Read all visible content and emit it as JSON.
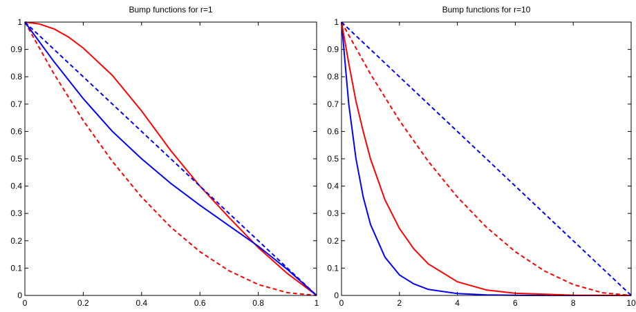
{
  "chart_data": [
    {
      "type": "line",
      "title": "Bump functions for r=1",
      "xlim": [
        0,
        1
      ],
      "ylim": [
        0,
        1
      ],
      "xticks": [
        "0",
        "0.2",
        "0.4",
        "0.6",
        "0.8",
        "1"
      ],
      "yticks": [
        "0",
        "0.1",
        "0.2",
        "0.3",
        "0.4",
        "0.5",
        "0.6",
        "0.7",
        "0.8",
        "0.9",
        "1"
      ],
      "grid": false,
      "series": [
        {
          "color": "#ff0000",
          "dash": false,
          "x": [
            0,
            0.05,
            0.1,
            0.15,
            0.2,
            0.3,
            0.4,
            0.5,
            0.6,
            0.7,
            0.8,
            0.9,
            1.0
          ],
          "y": [
            1.0,
            0.993,
            0.975,
            0.945,
            0.905,
            0.805,
            0.675,
            0.53,
            0.4,
            0.285,
            0.175,
            0.08,
            0.0
          ]
        },
        {
          "color": "#ff0000",
          "dash": true,
          "x": [
            0,
            0.1,
            0.2,
            0.3,
            0.4,
            0.5,
            0.6,
            0.7,
            0.8,
            0.9,
            1.0
          ],
          "y": [
            1.0,
            0.81,
            0.64,
            0.49,
            0.36,
            0.25,
            0.16,
            0.09,
            0.04,
            0.01,
            0.0
          ]
        },
        {
          "color": "#0000ff",
          "dash": false,
          "x": [
            0,
            0.1,
            0.2,
            0.3,
            0.4,
            0.5,
            0.6,
            0.7,
            0.8,
            0.9,
            1.0
          ],
          "y": [
            1.0,
            0.855,
            0.72,
            0.6,
            0.5,
            0.41,
            0.33,
            0.255,
            0.18,
            0.095,
            0.0
          ]
        },
        {
          "color": "#0000ff",
          "dash": true,
          "x": [
            0,
            1.0
          ],
          "y": [
            1.0,
            0.0
          ]
        }
      ]
    },
    {
      "type": "line",
      "title": "Bump functions for r=10",
      "xlim": [
        0,
        10
      ],
      "ylim": [
        0,
        1
      ],
      "xticks": [
        "0",
        "2",
        "4",
        "6",
        "8",
        "10"
      ],
      "yticks": [
        "0",
        "0.1",
        "0.2",
        "0.3",
        "0.4",
        "0.5",
        "0.6",
        "0.7",
        "0.8",
        "0.9",
        "1"
      ],
      "grid": false,
      "series": [
        {
          "color": "#0000ff",
          "dash": false,
          "x": [
            0,
            0.25,
            0.5,
            0.75,
            1,
            1.5,
            2,
            2.5,
            3,
            4,
            5,
            6,
            8,
            10
          ],
          "y": [
            1.0,
            0.7,
            0.5,
            0.36,
            0.26,
            0.14,
            0.075,
            0.042,
            0.022,
            0.007,
            0.002,
            0.0005,
            0.0,
            0.0
          ]
        },
        {
          "color": "#ff0000",
          "dash": false,
          "x": [
            0,
            0.25,
            0.5,
            0.75,
            1,
            1.5,
            2,
            2.5,
            3,
            4,
            5,
            6,
            8,
            10
          ],
          "y": [
            1.0,
            0.85,
            0.71,
            0.6,
            0.5,
            0.35,
            0.245,
            0.17,
            0.115,
            0.05,
            0.02,
            0.008,
            0.001,
            0.0
          ]
        },
        {
          "color": "#ff0000",
          "dash": true,
          "x": [
            0,
            1,
            2,
            3,
            4,
            5,
            6,
            7,
            8,
            9,
            10
          ],
          "y": [
            1.0,
            0.81,
            0.64,
            0.49,
            0.36,
            0.25,
            0.16,
            0.09,
            0.04,
            0.01,
            0.0
          ]
        },
        {
          "color": "#0000ff",
          "dash": true,
          "x": [
            0,
            10
          ],
          "y": [
            1.0,
            0.0
          ]
        }
      ]
    }
  ]
}
